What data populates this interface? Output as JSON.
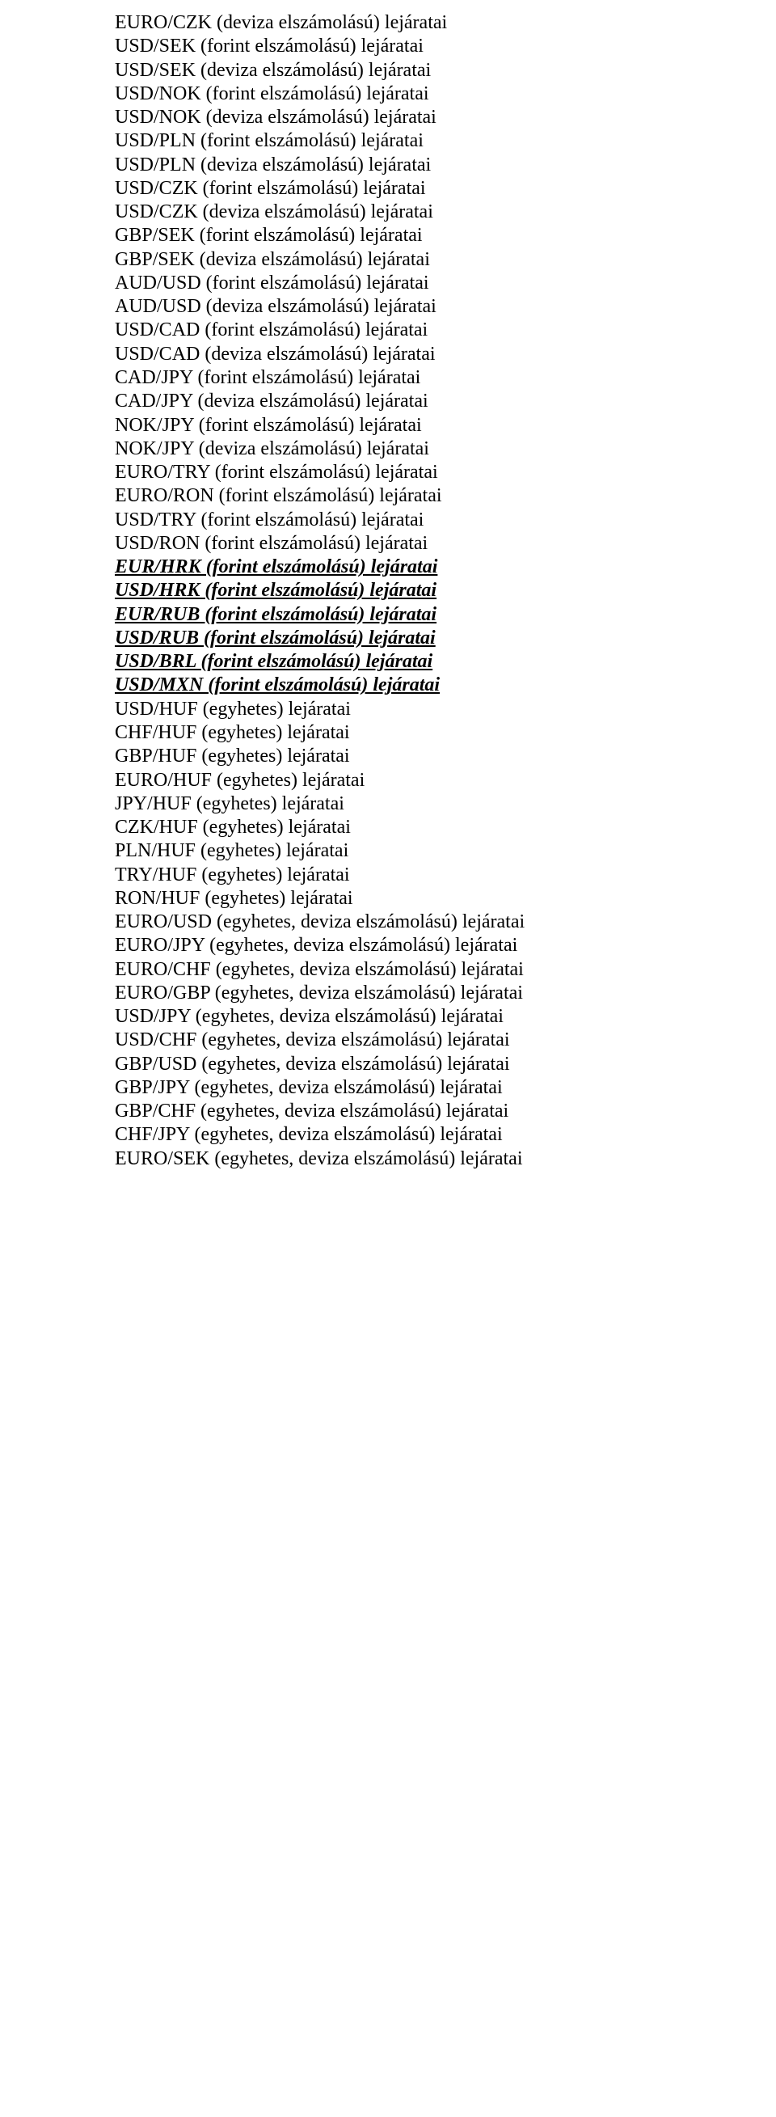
{
  "lines": [
    {
      "style": "normal",
      "text": "EURO/CZK (deviza elszámolású) lejáratai"
    },
    {
      "style": "normal",
      "text": "USD/SEK (forint elszámolású) lejáratai"
    },
    {
      "style": "normal",
      "text": "USD/SEK (deviza elszámolású) lejáratai"
    },
    {
      "style": "normal",
      "text": "USD/NOK (forint elszámolású) lejáratai"
    },
    {
      "style": "normal",
      "text": "USD/NOK (deviza elszámolású) lejáratai"
    },
    {
      "style": "normal",
      "text": "USD/PLN (forint elszámolású) lejáratai"
    },
    {
      "style": "normal",
      "text": "USD/PLN (deviza elszámolású) lejáratai"
    },
    {
      "style": "normal",
      "text": "USD/CZK (forint elszámolású) lejáratai"
    },
    {
      "style": "normal",
      "text": "USD/CZK (deviza elszámolású) lejáratai"
    },
    {
      "style": "normal",
      "text": "GBP/SEK (forint elszámolású) lejáratai"
    },
    {
      "style": "normal",
      "text": "GBP/SEK (deviza elszámolású) lejáratai"
    },
    {
      "style": "normal",
      "text": "AUD/USD (forint elszámolású) lejáratai"
    },
    {
      "style": "normal",
      "text": "AUD/USD (deviza elszámolású) lejáratai"
    },
    {
      "style": "normal",
      "text": "USD/CAD (forint elszámolású) lejáratai"
    },
    {
      "style": "normal",
      "text": "USD/CAD (deviza elszámolású) lejáratai"
    },
    {
      "style": "normal",
      "text": "CAD/JPY (forint elszámolású) lejáratai"
    },
    {
      "style": "normal",
      "text": "CAD/JPY (deviza elszámolású) lejáratai"
    },
    {
      "style": "normal",
      "text": "NOK/JPY (forint elszámolású) lejáratai"
    },
    {
      "style": "normal",
      "text": "NOK/JPY (deviza elszámolású) lejáratai"
    },
    {
      "style": "normal",
      "text": "EURO/TRY (forint elszámolású) lejáratai"
    },
    {
      "style": "normal",
      "text": "EURO/RON (forint elszámolású) lejáratai"
    },
    {
      "style": "normal",
      "text": "USD/TRY (forint elszámolású) lejáratai"
    },
    {
      "style": "normal",
      "text": "USD/RON (forint elszámolású) lejáratai"
    },
    {
      "style": "biu",
      "text": "EUR/HRK (forint elszámolású) lejáratai"
    },
    {
      "style": "biu",
      "text": "USD/HRK (forint elszámolású) lejáratai"
    },
    {
      "style": "biu",
      "text": "EUR/RUB (forint elszámolású) lejáratai"
    },
    {
      "style": "biu",
      "text": "USD/RUB (forint elszámolású) lejáratai"
    },
    {
      "style": "biu",
      "text": "USD/BRL (forint elszámolású) lejáratai"
    },
    {
      "style": "biu",
      "text": "USD/MXN (forint elszámolású) lejáratai"
    },
    {
      "style": "normal",
      "text": "USD/HUF (egyhetes) lejáratai"
    },
    {
      "style": "normal",
      "text": "CHF/HUF (egyhetes) lejáratai"
    },
    {
      "style": "normal",
      "text": "GBP/HUF (egyhetes) lejáratai"
    },
    {
      "style": "normal",
      "text": "EURO/HUF (egyhetes) lejáratai"
    },
    {
      "style": "normal",
      "text": "JPY/HUF (egyhetes) lejáratai"
    },
    {
      "style": "normal",
      "text": "CZK/HUF (egyhetes) lejáratai"
    },
    {
      "style": "normal",
      "text": "PLN/HUF (egyhetes) lejáratai"
    },
    {
      "style": "normal",
      "text": "TRY/HUF (egyhetes) lejáratai"
    },
    {
      "style": "normal",
      "text": "RON/HUF (egyhetes) lejáratai"
    },
    {
      "style": "normal",
      "text": "EURO/USD (egyhetes, deviza elszámolású) lejáratai"
    },
    {
      "style": "normal",
      "text": "EURO/JPY (egyhetes, deviza elszámolású) lejáratai"
    },
    {
      "style": "normal",
      "text": "EURO/CHF (egyhetes, deviza elszámolású) lejáratai"
    },
    {
      "style": "normal",
      "text": "EURO/GBP (egyhetes, deviza elszámolású) lejáratai"
    },
    {
      "style": "normal",
      "text": "USD/JPY (egyhetes, deviza elszámolású) lejáratai"
    },
    {
      "style": "normal",
      "text": "USD/CHF (egyhetes, deviza elszámolású) lejáratai"
    },
    {
      "style": "normal",
      "text": "GBP/USD (egyhetes, deviza elszámolású) lejáratai"
    },
    {
      "style": "normal",
      "text": "GBP/JPY (egyhetes, deviza elszámolású) lejáratai"
    },
    {
      "style": "normal",
      "text": "GBP/CHF (egyhetes, deviza elszámolású) lejáratai"
    },
    {
      "style": "normal",
      "text": "CHF/JPY (egyhetes, deviza elszámolású) lejáratai"
    },
    {
      "style": "normal",
      "text": "EURO/SEK (egyhetes, deviza elszámolású) lejáratai"
    }
  ]
}
